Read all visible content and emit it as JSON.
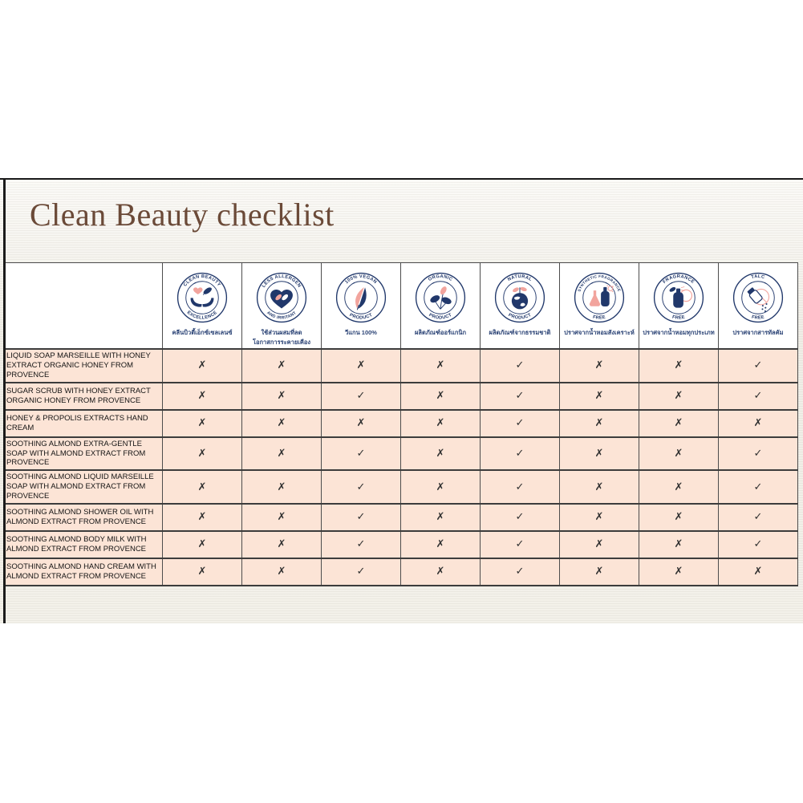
{
  "slide": {
    "title": "Clean Beauty checklist"
  },
  "colors": {
    "navy": "#21386b",
    "pink": "#f2a49d",
    "peach": "#fce4d6",
    "title_brown": "#6b4a38",
    "slide_background": "#f3f1ea",
    "border": "#4d4d4d"
  },
  "table": {
    "mark_true": "✓",
    "mark_false": "✗",
    "columns": [
      {
        "icon": "clean-beauty-excellence-icon",
        "glyph": "clean-beauty",
        "arc_top": "CLEAN BEAUTY",
        "arc_bottom": "EXCELLENCE",
        "caption_lines": [
          "คลีนบิวตี้เอ็กซ์เซลเลนซ์"
        ]
      },
      {
        "icon": "less-allergen-irritant-icon",
        "glyph": "less-allergen",
        "arc_top": "LESS ALLERGEN",
        "arc_bottom": "AND IRRITANT",
        "caption_lines": [
          "ใช้ส่วนผสมที่ลด",
          "โอกาสการระคายเคือง"
        ]
      },
      {
        "icon": "vegan-100-icon",
        "glyph": "vegan",
        "arc_top": "100% VEGAN",
        "arc_bottom": "PRODUCT",
        "caption_lines": [
          "วีแกน 100%"
        ]
      },
      {
        "icon": "organic-product-icon",
        "glyph": "organic",
        "arc_top": "ORGANIC",
        "arc_bottom": "PRODUCT",
        "caption_lines": [
          "ผลิตภัณฑ์ออร์แกนิก"
        ]
      },
      {
        "icon": "natural-product-icon",
        "glyph": "natural",
        "arc_top": "NATURAL",
        "arc_bottom": "PRODUCT",
        "caption_lines": [
          "ผลิตภัณฑ์จากธรรมชาติ"
        ]
      },
      {
        "icon": "synthetic-fragrance-free-icon",
        "glyph": "synthetic-fragrance",
        "arc_top": "SYNTHETIC FRAGRANCE",
        "arc_bottom": "FREE",
        "caption_lines": [
          "ปราศจากน้ำหอมสังเคราะห์"
        ]
      },
      {
        "icon": "fragrance-free-icon",
        "glyph": "fragrance",
        "arc_top": "FRAGRANCE",
        "arc_bottom": "FREE",
        "caption_lines": [
          "ปราศจากน้ำหอมทุกประเภท"
        ]
      },
      {
        "icon": "talc-free-icon",
        "glyph": "talc",
        "arc_top": "TALC",
        "arc_bottom": "FREE",
        "caption_lines": [
          "ปราศจากสารทัลคัม"
        ]
      }
    ],
    "rows": [
      {
        "label": "LIQUID SOAP MARSEILLE WITH HONEY EXTRACT ORGANIC HONEY FROM PROVENCE",
        "marks": [
          "✗",
          "✗",
          "✗",
          "✗",
          "✓",
          "✗",
          "✗",
          "✓"
        ]
      },
      {
        "label": "SUGAR SCRUB WITH HONEY EXTRACT ORGANIC HONEY FROM PROVENCE",
        "marks": [
          "✗",
          "✗",
          "✓",
          "✗",
          "✓",
          "✗",
          "✗",
          "✓"
        ]
      },
      {
        "label": "HONEY & PROPOLIS EXTRACTS HAND CREAM",
        "marks": [
          "✗",
          "✗",
          "✗",
          "✗",
          "✓",
          "✗",
          "✗",
          "✗"
        ]
      },
      {
        "label": "SOOTHING ALMOND EXTRA-GENTLE SOAP WITH ALMOND EXTRACT FROM PROVENCE",
        "marks": [
          "✗",
          "✗",
          "✓",
          "✗",
          "✓",
          "✗",
          "✗",
          "✓"
        ]
      },
      {
        "label": "SOOTHING ALMOND LIQUID MARSEILLE SOAP WITH ALMOND EXTRACT FROM PROVENCE",
        "marks": [
          "✗",
          "✗",
          "✓",
          "✗",
          "✓",
          "✗",
          "✗",
          "✓"
        ]
      },
      {
        "label": "SOOTHING ALMOND SHOWER OIL WITH ALMOND EXTRACT FROM PROVENCE",
        "marks": [
          "✗",
          "✗",
          "✓",
          "✗",
          "✓",
          "✗",
          "✗",
          "✓"
        ]
      },
      {
        "label": "SOOTHING ALMOND BODY MILK WITH ALMOND EXTRACT FROM PROVENCE",
        "marks": [
          "✗",
          "✗",
          "✓",
          "✗",
          "✓",
          "✗",
          "✗",
          "✓"
        ]
      },
      {
        "label": "SOOTHING ALMOND HAND CREAM WITH ALMOND EXTRACT FROM PROVENCE",
        "marks": [
          "✗",
          "✗",
          "✓",
          "✗",
          "✓",
          "✗",
          "✗",
          "✗"
        ]
      }
    ]
  }
}
